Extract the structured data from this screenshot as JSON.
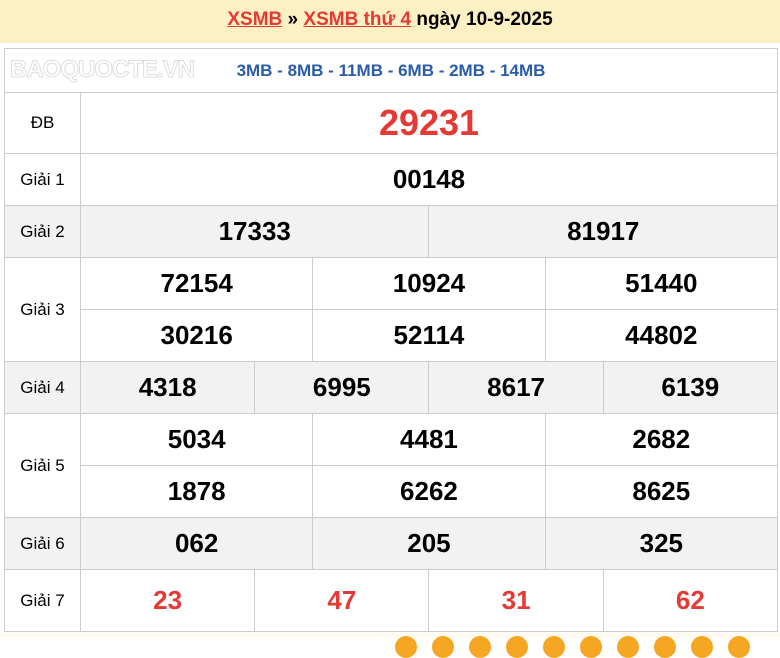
{
  "breadcrumb": {
    "home": "XSMB",
    "sep": "»",
    "link": "XSMB thứ 4",
    "rest": "ngày 10-9-2025"
  },
  "codes": "3MB - 8MB - 11MB - 6MB - 2MB - 14MB",
  "prizes": {
    "db": {
      "label": "ĐB",
      "values": [
        "29231"
      ]
    },
    "g1": {
      "label": "Giải 1",
      "values": [
        "00148"
      ]
    },
    "g2": {
      "label": "Giải 2",
      "values": [
        "17333",
        "81917"
      ]
    },
    "g3": {
      "label": "Giải 3",
      "values": [
        "72154",
        "10924",
        "51440",
        "30216",
        "52114",
        "44802"
      ]
    },
    "g4": {
      "label": "Giải 4",
      "values": [
        "4318",
        "6995",
        "8617",
        "6139"
      ]
    },
    "g5": {
      "label": "Giải 5",
      "values": [
        "5034",
        "4481",
        "2682",
        "1878",
        "6262",
        "8625"
      ]
    },
    "g6": {
      "label": "Giải 6",
      "values": [
        "062",
        "205",
        "325"
      ]
    },
    "g7": {
      "label": "Giải 7",
      "values": [
        "23",
        "47",
        "31",
        "62"
      ]
    }
  },
  "watermark": "BAOQUOCTE.VN",
  "colors": {
    "accent": "#e53935",
    "codes": "#2a5caa",
    "header_bg": "#fdf1c4"
  }
}
